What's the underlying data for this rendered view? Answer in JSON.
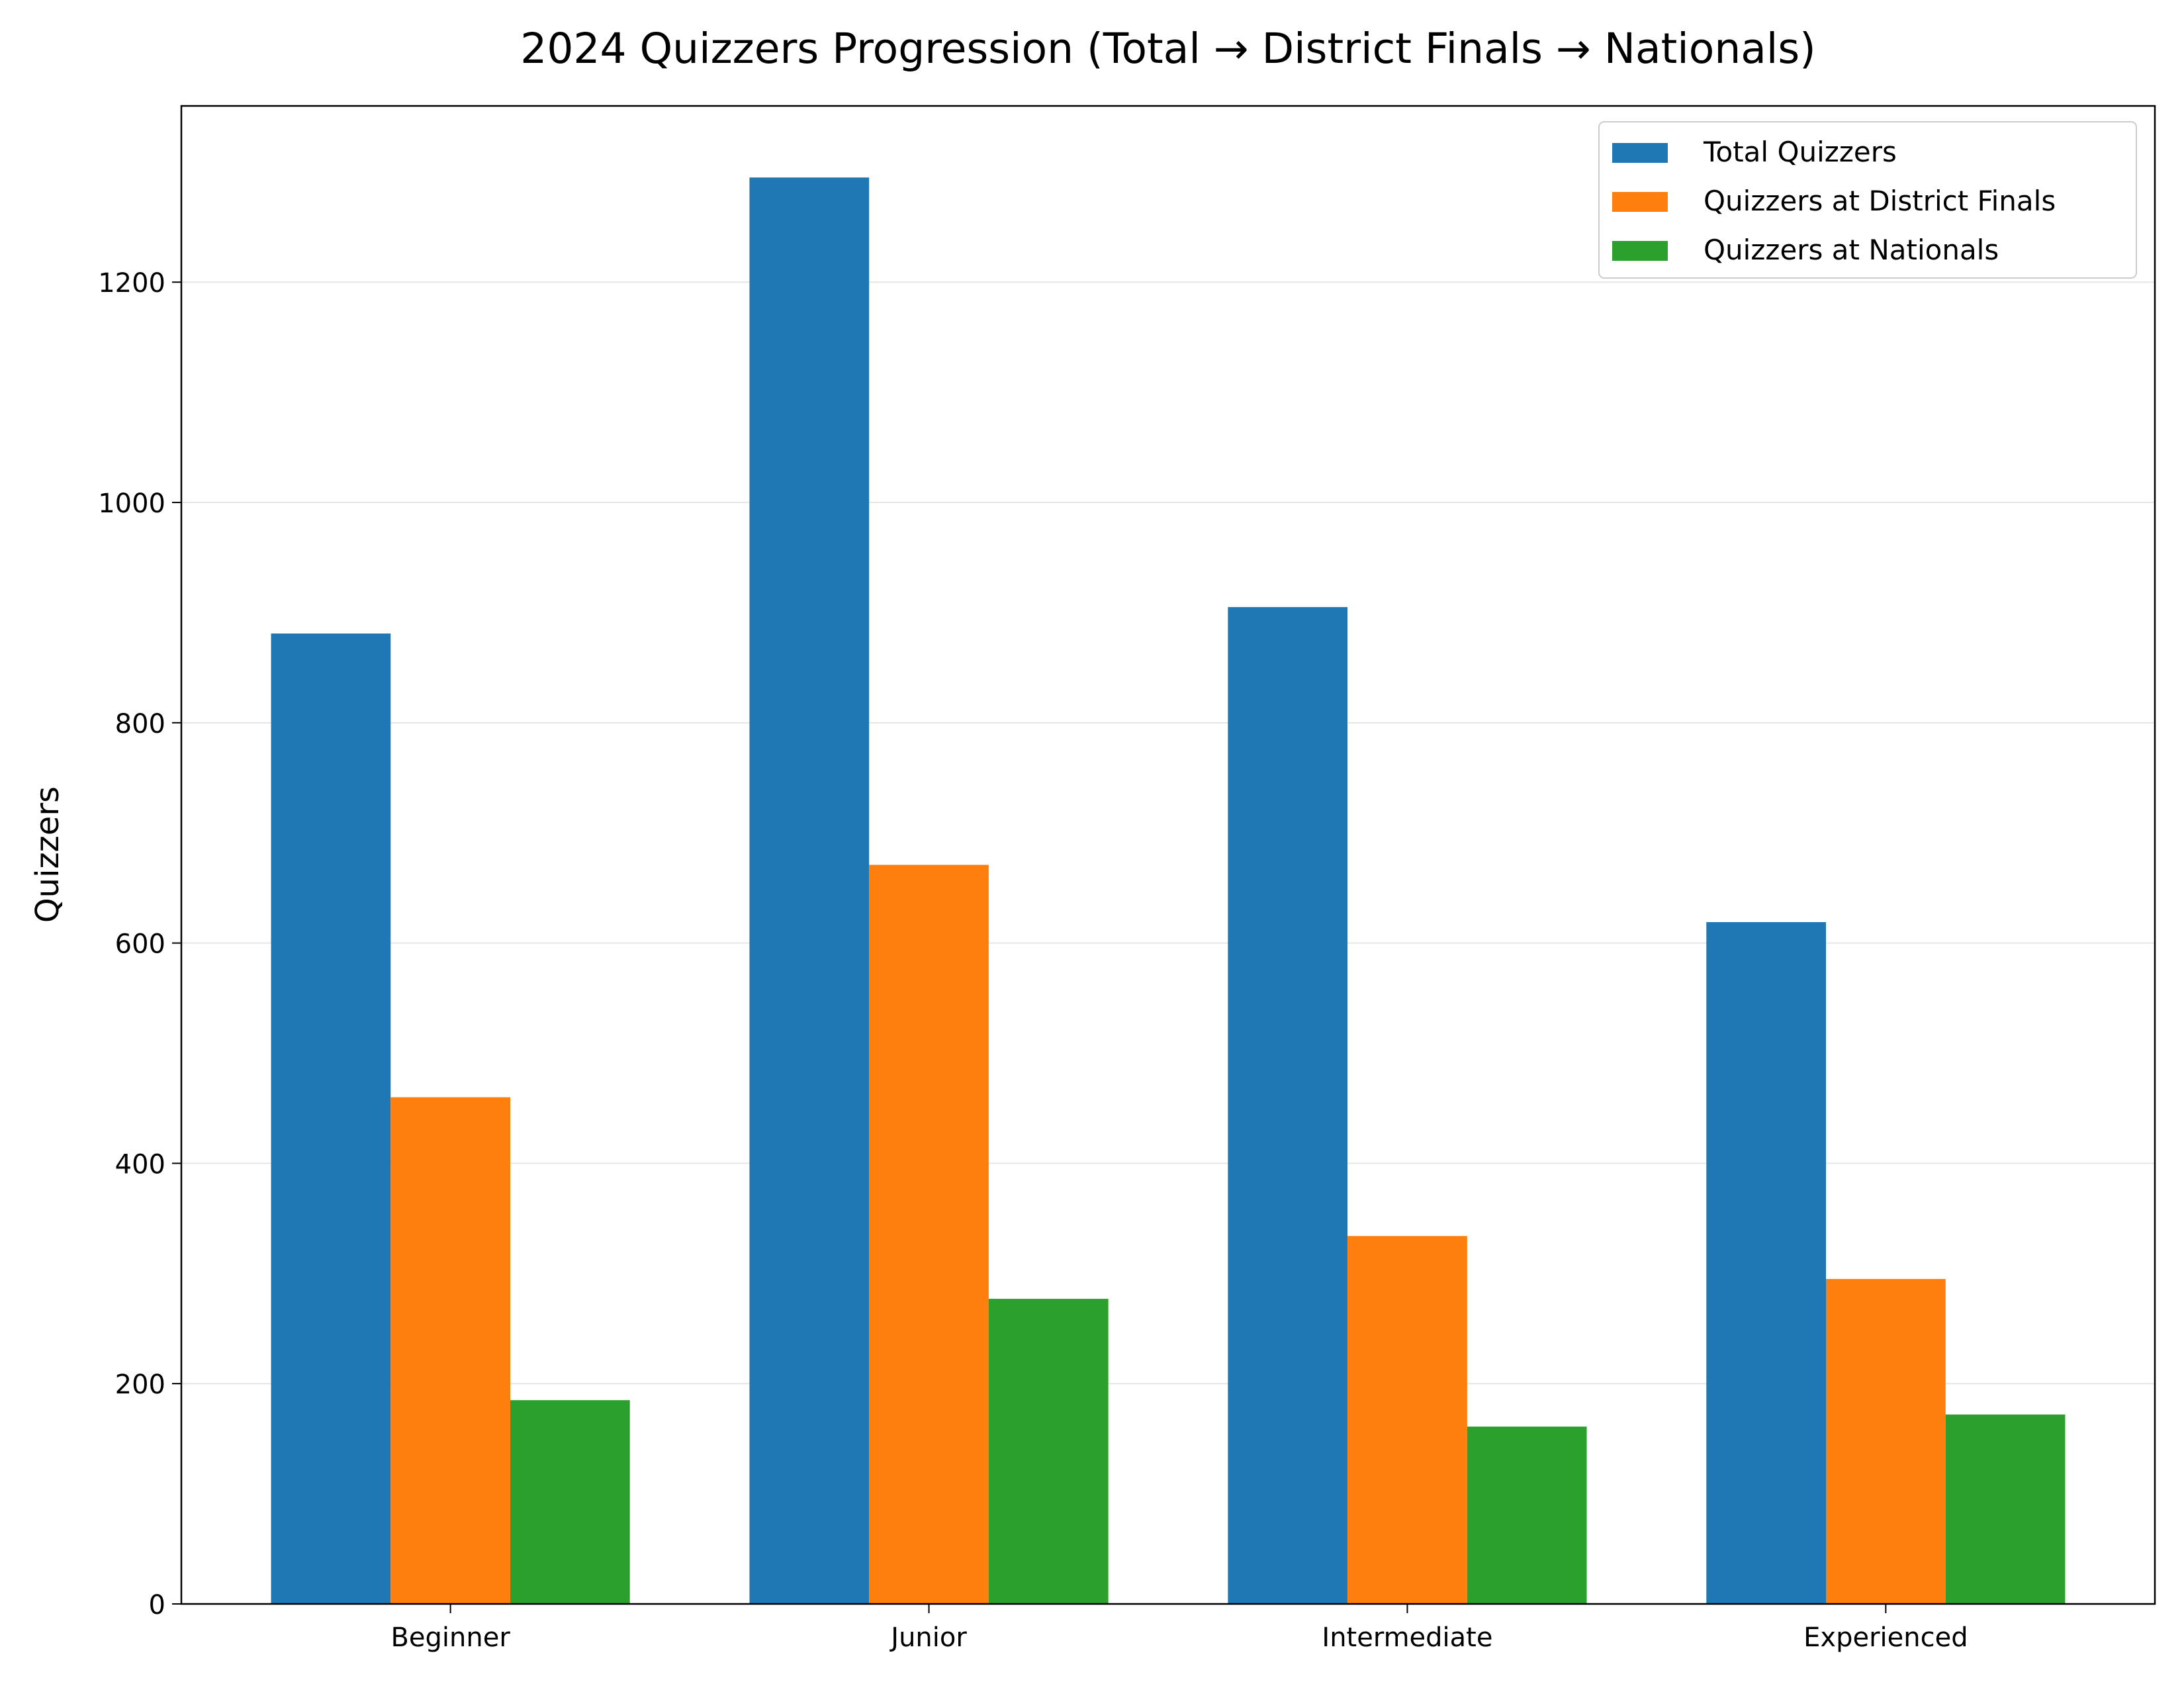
{
  "chart_data": {
    "type": "bar",
    "title": "2024 Quizzers Progression (Total → District Finals → Nationals)",
    "xlabel": "",
    "ylabel": "Quizzers",
    "categories": [
      "Beginner",
      "Junior",
      "Intermediate",
      "Experienced"
    ],
    "series": [
      {
        "name": "Total Quizzers",
        "color": "#1f77b4",
        "values": [
          881,
          1295,
          905,
          619
        ]
      },
      {
        "name": "Quizzers at District Finals",
        "color": "#ff7f0e",
        "values": [
          460,
          671,
          334,
          295
        ]
      },
      {
        "name": "Quizzers at Nationals",
        "color": "#2ca02c",
        "values": [
          185,
          277,
          161,
          172
        ]
      }
    ],
    "ylim": [
      0,
      1360
    ],
    "yticks": [
      0,
      200,
      400,
      600,
      800,
      1000,
      1200
    ],
    "grid": "y",
    "legend": "top-right"
  }
}
